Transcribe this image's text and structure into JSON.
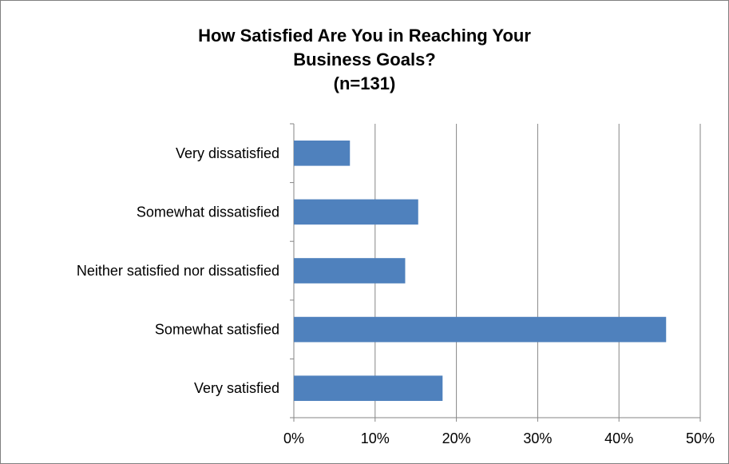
{
  "chart_data": {
    "type": "bar",
    "orientation": "horizontal",
    "title": [
      "How Satisfied Are You in Reaching Your",
      "Business Goals?",
      "(n=131)"
    ],
    "categories": [
      "Very dissatisfied",
      "Somewhat dissatisfied",
      "Neither satisfied nor dissatisfied",
      "Somewhat satisfied",
      "Very satisfied"
    ],
    "values": [
      6.9,
      15.3,
      13.7,
      45.8,
      18.3
    ],
    "xlim": [
      0,
      50
    ],
    "x_ticks": [
      0,
      10,
      20,
      30,
      40,
      50
    ],
    "x_tick_labels": [
      "0%",
      "10%",
      "20%",
      "30%",
      "40%",
      "50%"
    ],
    "grid": true,
    "legend": "none",
    "colors": {
      "bar": "#4F81BD",
      "grid": "#868686",
      "axis": "#868686"
    }
  }
}
